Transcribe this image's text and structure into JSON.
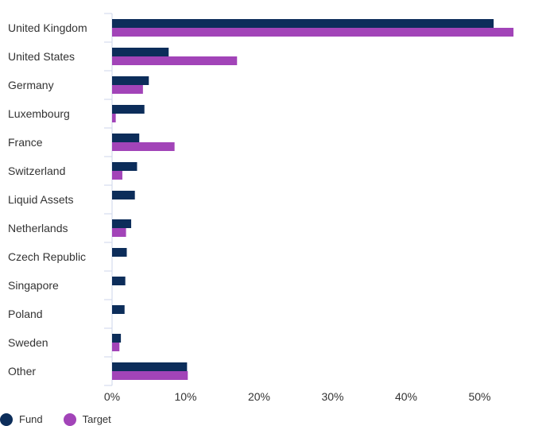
{
  "chart_data": {
    "type": "bar",
    "orientation": "horizontal",
    "categories": [
      "United Kingdom",
      "United States",
      "Germany",
      "Luxembourg",
      "France",
      "Switzerland",
      "Liquid Assets",
      "Netherlands",
      "Czech Republic",
      "Singapore",
      "Poland",
      "Sweden",
      "Other"
    ],
    "series": [
      {
        "name": "Fund",
        "color": "#0c2d5a",
        "values": [
          51.9,
          7.7,
          5.0,
          4.4,
          3.7,
          3.4,
          3.1,
          2.6,
          2.0,
          1.8,
          1.7,
          1.2,
          10.2
        ]
      },
      {
        "name": "Target",
        "color": "#a244b8",
        "values": [
          54.6,
          17.0,
          4.2,
          0.5,
          8.5,
          1.4,
          0.0,
          1.9,
          0.0,
          0.0,
          0.0,
          1.0,
          10.3
        ]
      }
    ],
    "xlim": [
      0,
      59
    ],
    "xticks": [
      0,
      10,
      20,
      30,
      40,
      50
    ],
    "tick_labels": [
      "0%",
      "10%",
      "20%",
      "30%",
      "40%",
      "50%"
    ],
    "grid": false,
    "legend_position": "bottom-left"
  }
}
